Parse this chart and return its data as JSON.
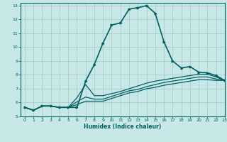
{
  "xlabel": "Humidex (Indice chaleur)",
  "background_color": "#c8e8e8",
  "grid_color": "#a8cccc",
  "line_color": "#006060",
  "xlim": [
    -0.5,
    23
  ],
  "ylim": [
    5,
    13.2
  ],
  "xticks": [
    0,
    1,
    2,
    3,
    4,
    5,
    6,
    7,
    8,
    9,
    10,
    11,
    12,
    13,
    14,
    15,
    16,
    17,
    18,
    19,
    20,
    21,
    22,
    23
  ],
  "yticks": [
    5,
    6,
    7,
    8,
    9,
    10,
    11,
    12,
    13
  ],
  "lines": [
    {
      "x": [
        0,
        1,
        2,
        3,
        4,
        5,
        6,
        7,
        8,
        9,
        10,
        11,
        12,
        13,
        14,
        15,
        16,
        17,
        18,
        19,
        20,
        21,
        22,
        23
      ],
      "y": [
        5.65,
        5.45,
        5.75,
        5.75,
        5.65,
        5.65,
        5.65,
        7.55,
        8.75,
        10.3,
        11.6,
        11.75,
        12.75,
        12.85,
        13.0,
        12.45,
        10.4,
        9.0,
        8.5,
        8.6,
        8.2,
        8.15,
        7.95,
        7.6
      ],
      "marker": true,
      "linewidth": 1.2
    },
    {
      "x": [
        0,
        1,
        2,
        3,
        4,
        5,
        6,
        7,
        8,
        9,
        10,
        11,
        12,
        13,
        14,
        15,
        16,
        17,
        18,
        19,
        20,
        21,
        22,
        23
      ],
      "y": [
        5.65,
        5.45,
        5.75,
        5.75,
        5.65,
        5.65,
        6.35,
        7.3,
        6.5,
        6.5,
        6.65,
        6.8,
        7.0,
        7.2,
        7.4,
        7.55,
        7.65,
        7.75,
        7.85,
        7.95,
        8.05,
        8.05,
        7.85,
        7.6
      ],
      "marker": false,
      "linewidth": 0.9
    },
    {
      "x": [
        0,
        1,
        2,
        3,
        4,
        5,
        6,
        7,
        8,
        9,
        10,
        11,
        12,
        13,
        14,
        15,
        16,
        17,
        18,
        19,
        20,
        21,
        22,
        23
      ],
      "y": [
        5.65,
        5.45,
        5.75,
        5.75,
        5.65,
        5.65,
        6.05,
        6.4,
        6.25,
        6.25,
        6.45,
        6.65,
        6.85,
        6.95,
        7.15,
        7.3,
        7.45,
        7.55,
        7.65,
        7.75,
        7.85,
        7.85,
        7.7,
        7.6
      ],
      "marker": false,
      "linewidth": 0.9
    },
    {
      "x": [
        0,
        1,
        2,
        3,
        4,
        5,
        6,
        7,
        8,
        9,
        10,
        11,
        12,
        13,
        14,
        15,
        16,
        17,
        18,
        19,
        20,
        21,
        22,
        23
      ],
      "y": [
        5.65,
        5.45,
        5.75,
        5.75,
        5.65,
        5.65,
        5.85,
        6.1,
        6.1,
        6.1,
        6.3,
        6.5,
        6.7,
        6.8,
        7.0,
        7.1,
        7.25,
        7.35,
        7.45,
        7.55,
        7.65,
        7.65,
        7.6,
        7.6
      ],
      "marker": false,
      "linewidth": 0.9
    }
  ]
}
